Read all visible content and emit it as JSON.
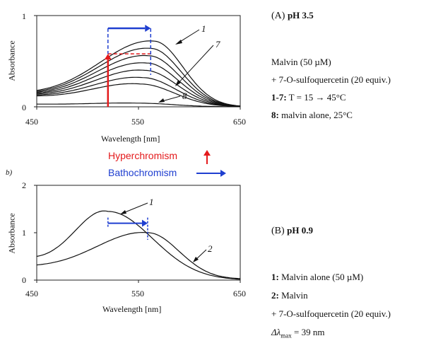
{
  "chart_data": [
    {
      "type": "line",
      "panel": "A",
      "title": "(A) pH 3.5",
      "xlabel": "Wavelength [nm]",
      "ylabel": "Absorbance",
      "xlim": [
        450,
        650
      ],
      "ylim": [
        0,
        1
      ],
      "x_ticks": [
        "450",
        "550",
        "650"
      ],
      "y_ticks": [
        "0",
        "1"
      ],
      "series": [
        {
          "name": "1",
          "peak_x": 565,
          "peak_y": 0.72,
          "y_at_450": 0.18,
          "y_at_650": 0.0
        },
        {
          "peak_x": 562,
          "peak_y": 0.64,
          "y_at_450": 0.17,
          "y_at_650": 0.0
        },
        {
          "peak_x": 560,
          "peak_y": 0.56,
          "y_at_450": 0.16,
          "y_at_650": 0.0
        },
        {
          "peak_x": 558,
          "peak_y": 0.48,
          "y_at_450": 0.15,
          "y_at_650": 0.0
        },
        {
          "peak_x": 556,
          "peak_y": 0.4,
          "y_at_450": 0.14,
          "y_at_650": 0.0
        },
        {
          "peak_x": 554,
          "peak_y": 0.32,
          "y_at_450": 0.13,
          "y_at_650": 0.0
        },
        {
          "name": "7",
          "peak_x": 552,
          "peak_y": 0.25,
          "y_at_450": 0.12,
          "y_at_650": 0.0
        },
        {
          "name": "8",
          "peak_x": 550,
          "peak_y": 0.04,
          "y_at_450": 0.03,
          "y_at_650": 0.0
        }
      ],
      "annotations": {
        "hyperchromism_arrow": {
          "x": 520,
          "y_from": 0.0,
          "y_to": 0.58
        },
        "hyperchromism_dash": {
          "x_from": 520,
          "x_to": 562,
          "y": 0.58
        },
        "bathochromism_arrow": {
          "x_from": 520,
          "x_to": 562,
          "y": 0.86
        }
      }
    },
    {
      "type": "line",
      "panel": "B",
      "title": "(B) pH 0.9",
      "xlabel": "Wavelength [nm]",
      "ylabel": "Absorbance",
      "xlim": [
        450,
        650
      ],
      "ylim": [
        0,
        2
      ],
      "x_ticks": [
        "450",
        "550",
        "650"
      ],
      "y_ticks": [
        "0",
        "1",
        "2"
      ],
      "series": [
        {
          "name": "1",
          "peak_x": 520,
          "peak_y": 1.45,
          "y_at_450": 0.5,
          "y_at_650": 0.0
        },
        {
          "name": "2",
          "peak_x": 559,
          "peak_y": 1.0,
          "y_at_450": 0.32,
          "y_at_650": 0.02
        }
      ],
      "annotations": {
        "shift_arrow": {
          "x_from": 520,
          "x_to": 559,
          "y": 1.2
        }
      }
    }
  ],
  "panelA": {
    "title_prefix": "(A) ",
    "title_ph": "pH 3.5",
    "x_ticks": [
      "450",
      "550",
      "650"
    ],
    "y_ticks": [
      "0",
      "1"
    ],
    "xlabel": "Wavelength [nm]",
    "ylabel": "Absorbance",
    "curve_label_1": "1",
    "curve_label_7": "7",
    "curve_label_8": "8",
    "info": {
      "line1": "Malvin (50 µM)",
      "line2": "+ 7-O-sulfoquercetin (20 equiv.)",
      "line3_bold": "1-7:",
      "line3_rest": " T = 15 → 45°C",
      "line4_bold": "8:",
      "line4_rest": " malvin alone, 25°C"
    }
  },
  "legend": {
    "hyperchromism": "Hyperchromism",
    "bathochromism": "Bathochromism",
    "red": "#e41a1c",
    "blue": "#1f3fd0"
  },
  "panelB": {
    "sublabel": "b)",
    "title_prefix": "(B) ",
    "title_ph": "pH 0.9",
    "x_ticks": [
      "450",
      "550",
      "650"
    ],
    "y_ticks": [
      "0",
      "1",
      "2"
    ],
    "xlabel": "Wavelength [nm]",
    "ylabel": "Absorbance",
    "curve_label_1": "1",
    "curve_label_2": "2",
    "info": {
      "line1_bold": "1:",
      "line1_rest": " Malvin alone (50 µM)",
      "line2_bold": "2:",
      "line2_rest": " Malvin",
      "line3": "+ 7-O-sulfoquercetin (20 equiv.)",
      "line4_delta": "Δλ",
      "line4_sub": "max",
      "line4_rest": " = 39 nm"
    }
  }
}
